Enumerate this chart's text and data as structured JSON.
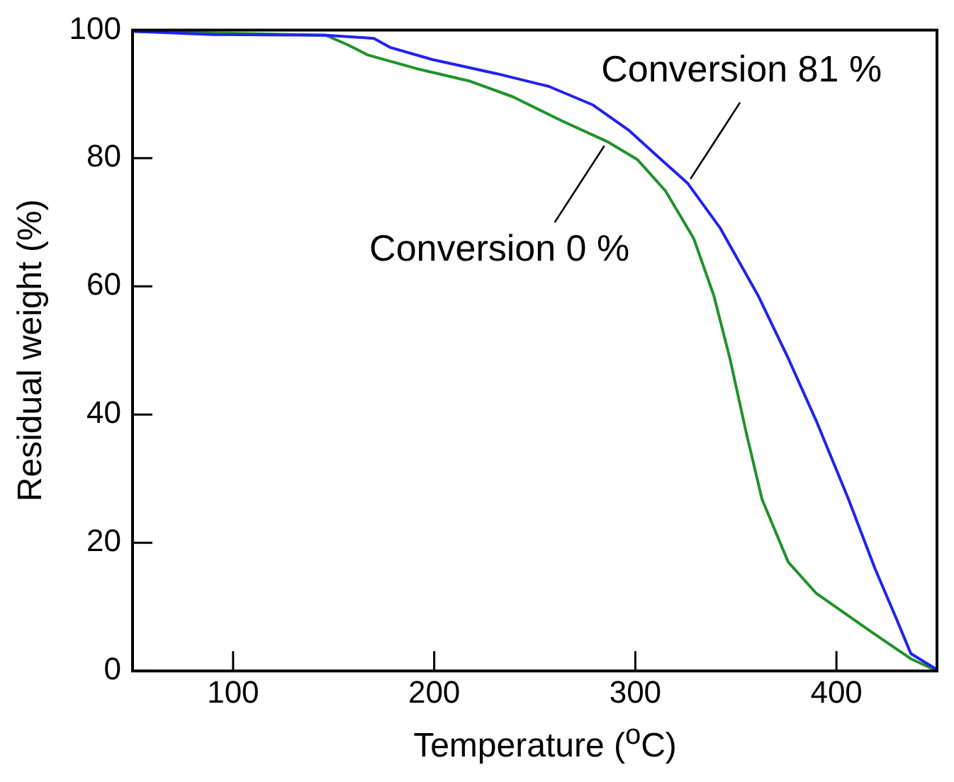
{
  "chart_data": {
    "type": "line",
    "xlabel": "Temperature ($^{o}$C)",
    "ylabel": "Residual weight (%)",
    "xlim": [
      50,
      450
    ],
    "xticks": [
      100,
      200,
      300,
      400
    ],
    "ylim": [
      0,
      100
    ],
    "yticks": [
      0,
      20,
      40,
      60,
      80,
      100
    ],
    "grid": false,
    "legend": false,
    "marker": "none",
    "line_style": "solid",
    "series": [
      {
        "color": "#2222ee",
        "x": [
          50,
          90,
          146,
          170,
          178,
          199,
          231,
          257,
          279,
          297,
          310,
          326,
          342,
          361,
          376,
          390,
          406,
          419,
          430,
          437,
          450
        ],
        "values": [
          99.8,
          99.3,
          99.2,
          98.7,
          97.3,
          95.4,
          93.2,
          91.2,
          88.3,
          84.3,
          80.6,
          76.1,
          69.2,
          58.6,
          48.8,
          39.0,
          26.8,
          16.1,
          8.0,
          2.7,
          0.2
        ]
      },
      {
        "color": "#22922a",
        "x": [
          50,
          146,
          157,
          167,
          191,
          218,
          239,
          263,
          286,
          301,
          315,
          329,
          339,
          347,
          355,
          363,
          376,
          390,
          416,
          437,
          450
        ],
        "values": [
          99.8,
          99.2,
          97.7,
          96.1,
          94.0,
          92.0,
          89.6,
          85.9,
          82.6,
          79.8,
          74.9,
          67.5,
          58.6,
          48.8,
          37.4,
          26.8,
          17.0,
          12.1,
          6.4,
          1.9,
          0
        ]
      }
    ],
    "annotations": [
      {
        "text": "Conversion 81 %",
        "x": 326,
        "y": 76.1
      },
      {
        "text": "Conversion 0 %",
        "x": 286,
        "y": 82.6
      }
    ]
  }
}
